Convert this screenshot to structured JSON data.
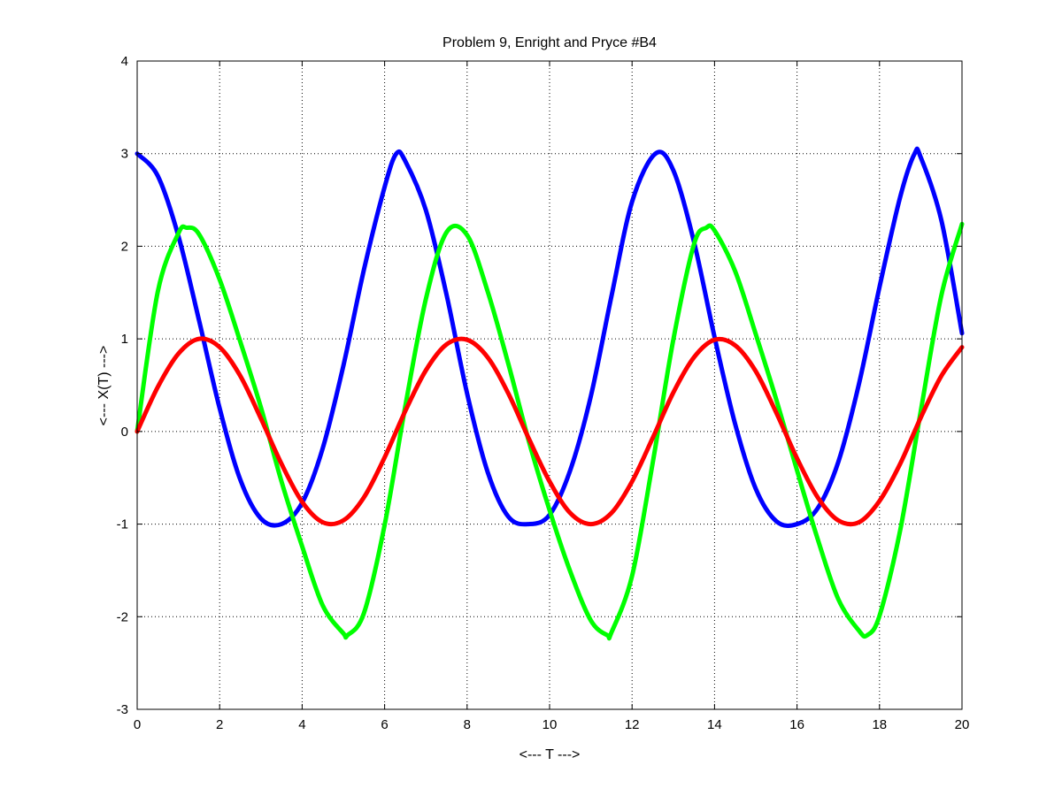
{
  "chart_data": {
    "type": "line",
    "title": "Problem 9, Enright and Pryce #B4",
    "xlabel": "<--- T --->",
    "ylabel": "<--- X(T) --->",
    "xlim": [
      0,
      20
    ],
    "ylim": [
      -3,
      4
    ],
    "xticks": [
      0,
      2,
      4,
      6,
      8,
      10,
      12,
      14,
      16,
      18,
      20
    ],
    "yticks": [
      -3,
      -2,
      -1,
      0,
      1,
      2,
      3,
      4
    ],
    "grid": true,
    "legend": "none",
    "series": [
      {
        "color": "#0000ff",
        "x": [
          0,
          0.5,
          1,
          1.5,
          2,
          2.5,
          3,
          3.5,
          4,
          4.5,
          5,
          5.5,
          6,
          6.283,
          6.5,
          7,
          7.5,
          8,
          8.5,
          9,
          9.5,
          10,
          10.5,
          11,
          11.5,
          12,
          12.566,
          13,
          13.5,
          14,
          14.5,
          15,
          15.5,
          16,
          16.5,
          17,
          17.5,
          18,
          18.5,
          18.85,
          19,
          19.5,
          20
        ],
        "y": [
          3.0,
          2.76,
          2.11,
          1.2,
          0.25,
          -0.52,
          -0.94,
          -1.0,
          -0.77,
          -0.18,
          0.71,
          1.75,
          2.64,
          3.0,
          2.92,
          2.39,
          1.48,
          0.41,
          -0.44,
          -0.92,
          -1.0,
          -0.9,
          -0.42,
          0.38,
          1.46,
          2.48,
          3.0,
          2.82,
          2.05,
          1.02,
          0.08,
          -0.62,
          -0.97,
          -1.0,
          -0.83,
          -0.33,
          0.51,
          1.56,
          2.53,
          3.0,
          2.96,
          2.28,
          1.06
        ]
      },
      {
        "color": "#00ff00",
        "x": [
          0,
          0.5,
          1,
          1.2,
          1.5,
          2,
          2.5,
          3,
          3.5,
          4,
          4.5,
          5,
          5.1,
          5.5,
          6,
          6.5,
          7,
          7.5,
          8,
          8.5,
          9,
          9.5,
          10,
          10.5,
          11,
          11.4,
          11.5,
          12,
          12.5,
          13,
          13.5,
          13.8,
          14,
          14.5,
          15,
          15.5,
          16,
          16.5,
          17,
          17.5,
          17.7,
          18,
          18.5,
          19,
          19.5,
          20
        ],
        "y": [
          0,
          1.51,
          2.14,
          2.2,
          2.13,
          1.64,
          0.97,
          0.26,
          -0.54,
          -1.24,
          -1.88,
          -2.18,
          -2.2,
          -1.96,
          -1.01,
          0.27,
          1.43,
          2.15,
          2.12,
          1.51,
          0.73,
          -0.11,
          -0.85,
          -1.51,
          -2.04,
          -2.2,
          -2.17,
          -1.56,
          -0.34,
          0.99,
          2.02,
          2.2,
          2.17,
          1.73,
          1.05,
          0.34,
          -0.42,
          -1.16,
          -1.81,
          -2.15,
          -2.2,
          -1.99,
          -1.07,
          0.22,
          1.47,
          2.24
        ]
      },
      {
        "color": "#ff0000",
        "x": [
          0,
          0.5,
          1,
          1.5,
          2,
          2.5,
          3,
          3.5,
          4,
          4.5,
          5,
          5.5,
          6,
          6.5,
          7,
          7.5,
          8,
          8.5,
          9,
          9.5,
          10,
          10.5,
          11,
          11.5,
          12,
          12.5,
          13,
          13.5,
          14,
          14.5,
          15,
          15.5,
          16,
          16.5,
          17,
          17.5,
          18,
          18.5,
          19,
          19.5,
          20
        ],
        "y": [
          0,
          0.48,
          0.84,
          1.0,
          0.91,
          0.6,
          0.14,
          -0.35,
          -0.76,
          -0.98,
          -0.96,
          -0.71,
          -0.28,
          0.22,
          0.66,
          0.94,
          0.99,
          0.8,
          0.41,
          -0.08,
          -0.54,
          -0.88,
          -1.0,
          -0.88,
          -0.54,
          -0.07,
          0.42,
          0.8,
          0.99,
          0.93,
          0.65,
          0.2,
          -0.29,
          -0.71,
          -0.96,
          -0.98,
          -0.75,
          -0.35,
          0.15,
          0.6,
          0.91
        ]
      }
    ]
  }
}
